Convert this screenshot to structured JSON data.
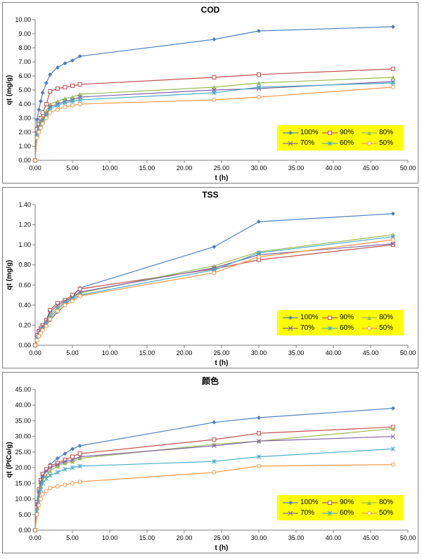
{
  "page": {
    "background": "#FFFFFF"
  },
  "legend": {
    "background": "#FFFF00",
    "rows": [
      [
        "100%",
        "90%",
        "80%"
      ],
      [
        "70%",
        "60%",
        "50%"
      ]
    ]
  },
  "series_styles": [
    {
      "name": "100%",
      "color": "#4F81BD",
      "marker": "diamond"
    },
    {
      "name": "90%",
      "color": "#C0504D",
      "marker": "square-open"
    },
    {
      "name": "80%",
      "color": "#9BBB59",
      "marker": "triangle"
    },
    {
      "name": "70%",
      "color": "#8064A2",
      "marker": "x"
    },
    {
      "name": "60%",
      "color": "#4BACC6",
      "marker": "asterisk"
    },
    {
      "name": "50%",
      "color": "#F79646",
      "marker": "circle-open"
    }
  ],
  "chart_data": [
    {
      "type": "line",
      "title": "COD",
      "xlabel": "t (h)",
      "ylabel": "qt (mg/g)",
      "xlim": [
        0,
        50
      ],
      "xtick": 5,
      "ylim": [
        0,
        10
      ],
      "ytick": 1,
      "tick_decimals": 2,
      "grid": false,
      "legend_position": "lower-right",
      "x": [
        0,
        0.25,
        0.5,
        0.75,
        1,
        1.5,
        2,
        3,
        4,
        5,
        6,
        24,
        30,
        48
      ],
      "series": [
        {
          "name": "100%",
          "values": [
            0,
            2.9,
            3.6,
            4.2,
            4.8,
            5.5,
            6.1,
            6.6,
            6.9,
            7.1,
            7.4,
            8.6,
            9.2,
            9.5
          ]
        },
        {
          "name": "90%",
          "values": [
            0,
            2.2,
            2.6,
            3.0,
            3.4,
            4.0,
            4.9,
            5.1,
            5.2,
            5.3,
            5.4,
            5.9,
            6.1,
            6.5
          ]
        },
        {
          "name": "80%",
          "values": [
            0,
            2.0,
            2.4,
            2.7,
            3.0,
            3.5,
            4.0,
            4.2,
            4.4,
            4.5,
            4.7,
            5.2,
            5.5,
            5.9
          ]
        },
        {
          "name": "70%",
          "values": [
            0,
            1.9,
            2.3,
            2.6,
            2.9,
            3.3,
            3.8,
            4.0,
            4.2,
            4.3,
            4.5,
            5.0,
            5.1,
            5.6
          ]
        },
        {
          "name": "60%",
          "values": [
            0,
            1.8,
            2.2,
            2.5,
            2.8,
            3.2,
            3.7,
            3.9,
            4.1,
            4.2,
            4.3,
            4.8,
            5.2,
            5.5
          ]
        },
        {
          "name": "50%",
          "values": [
            0,
            1.6,
            2.0,
            2.3,
            2.6,
            3.0,
            3.4,
            3.6,
            3.8,
            3.9,
            4.0,
            4.3,
            4.5,
            5.2
          ]
        }
      ]
    },
    {
      "type": "line",
      "title": "TSS",
      "xlabel": "t (h)",
      "ylabel": "qt (mg/g)",
      "xlim": [
        0,
        50
      ],
      "xtick": 5,
      "ylim": [
        0,
        1.4
      ],
      "ytick": 0.2,
      "tick_decimals": 2,
      "grid": false,
      "legend_position": "lower-right",
      "x": [
        0,
        0.25,
        0.5,
        0.75,
        1,
        1.5,
        2,
        3,
        4,
        5,
        6,
        24,
        30,
        48
      ],
      "series": [
        {
          "name": "100%",
          "values": [
            0,
            0.08,
            0.12,
            0.15,
            0.17,
            0.2,
            0.25,
            0.33,
            0.4,
            0.48,
            0.57,
            0.98,
            1.23,
            1.31
          ]
        },
        {
          "name": "90%",
          "values": [
            0,
            0.1,
            0.14,
            0.17,
            0.2,
            0.25,
            0.35,
            0.42,
            0.45,
            0.5,
            0.56,
            0.76,
            0.85,
            1.0
          ]
        },
        {
          "name": "80%",
          "values": [
            0,
            0.07,
            0.11,
            0.14,
            0.18,
            0.22,
            0.3,
            0.38,
            0.43,
            0.47,
            0.52,
            0.79,
            0.93,
            1.1
          ]
        },
        {
          "name": "70%",
          "values": [
            0,
            0.09,
            0.13,
            0.16,
            0.19,
            0.24,
            0.33,
            0.4,
            0.44,
            0.48,
            0.53,
            0.77,
            0.9,
            1.01
          ]
        },
        {
          "name": "60%",
          "values": [
            0,
            0.06,
            0.1,
            0.13,
            0.16,
            0.21,
            0.28,
            0.36,
            0.42,
            0.46,
            0.5,
            0.75,
            0.92,
            1.08
          ]
        },
        {
          "name": "50%",
          "values": [
            0,
            0.05,
            0.09,
            0.12,
            0.15,
            0.19,
            0.26,
            0.34,
            0.4,
            0.44,
            0.49,
            0.72,
            0.88,
            1.05
          ]
        }
      ]
    },
    {
      "type": "line",
      "title": "颜色",
      "xlabel": "t (h)",
      "ylabel": "qt (PtCo/g)",
      "xlim": [
        0,
        50
      ],
      "xtick": 5,
      "ylim": [
        0,
        45
      ],
      "ytick": 5,
      "tick_decimals": 2,
      "grid": false,
      "legend_position": "lower-right",
      "x": [
        0,
        0.25,
        0.5,
        0.75,
        1,
        1.5,
        2,
        3,
        4,
        5,
        6,
        24,
        30,
        48
      ],
      "series": [
        {
          "name": "100%",
          "values": [
            0,
            8,
            12,
            15,
            17,
            19,
            21,
            23,
            24.5,
            26,
            27,
            34.5,
            36,
            39
          ]
        },
        {
          "name": "90%",
          "values": [
            0,
            9,
            13,
            16,
            18,
            19.5,
            20.5,
            21.5,
            22.5,
            23.5,
            24.5,
            29,
            31,
            33
          ]
        },
        {
          "name": "80%",
          "values": [
            0,
            7,
            11,
            14,
            16,
            17.5,
            19,
            20.5,
            21.5,
            22,
            23,
            27.5,
            28.5,
            32.5
          ]
        },
        {
          "name": "70%",
          "values": [
            0,
            8.5,
            12.5,
            15.5,
            17.5,
            19,
            20,
            21,
            22,
            22.5,
            23.5,
            27,
            28.5,
            30
          ]
        },
        {
          "name": "60%",
          "values": [
            0,
            6,
            10,
            13,
            15,
            16.5,
            17.5,
            18.5,
            19.5,
            20,
            20.5,
            22,
            23.5,
            26
          ]
        },
        {
          "name": "50%",
          "values": [
            0,
            5,
            8,
            10,
            11.5,
            12.5,
            13.5,
            14,
            14.5,
            15,
            15.5,
            18.5,
            20.5,
            21
          ]
        }
      ]
    }
  ]
}
